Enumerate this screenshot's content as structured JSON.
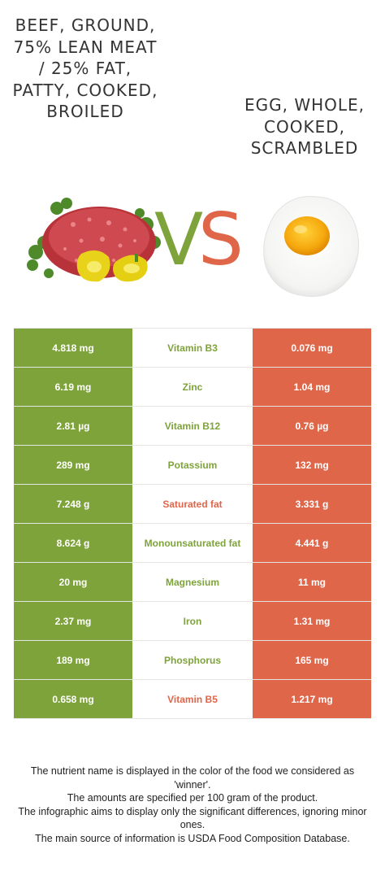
{
  "left_food": {
    "title": "Beef, ground, 75% lean meat / 25% fat, patty, cooked, broiled",
    "image": "ground-beef-with-peppers-image"
  },
  "right_food": {
    "title": "Egg, whole, cooked, scrambled",
    "image": "fried-egg-image"
  },
  "vs": {
    "v": "V",
    "s": "S"
  },
  "colors": {
    "left": "#7ea33a",
    "right": "#e0664a",
    "row_border": "#e5e5e5"
  },
  "rows": [
    {
      "left": "4.818 mg",
      "nutrient": "Vitamin B3",
      "right": "0.076 mg",
      "winner": "left"
    },
    {
      "left": "6.19 mg",
      "nutrient": "Zinc",
      "right": "1.04 mg",
      "winner": "left"
    },
    {
      "left": "2.81 µg",
      "nutrient": "Vitamin B12",
      "right": "0.76 µg",
      "winner": "left"
    },
    {
      "left": "289 mg",
      "nutrient": "Potassium",
      "right": "132 mg",
      "winner": "left"
    },
    {
      "left": "7.248 g",
      "nutrient": "Saturated fat",
      "right": "3.331 g",
      "winner": "right"
    },
    {
      "left": "8.624 g",
      "nutrient": "Monounsaturated fat",
      "right": "4.441 g",
      "winner": "left"
    },
    {
      "left": "20 mg",
      "nutrient": "Magnesium",
      "right": "11 mg",
      "winner": "left"
    },
    {
      "left": "2.37 mg",
      "nutrient": "Iron",
      "right": "1.31 mg",
      "winner": "left"
    },
    {
      "left": "189 mg",
      "nutrient": "Phosphorus",
      "right": "165 mg",
      "winner": "left"
    },
    {
      "left": "0.658 mg",
      "nutrient": "Vitamin B5",
      "right": "1.217 mg",
      "winner": "right"
    }
  ],
  "footer": [
    "The nutrient name is displayed in the color of the food we considered as 'winner'.",
    "The amounts are specified per 100 gram of the product.",
    "The infographic aims to display only the significant differences, ignoring minor ones.",
    "The main source of information is USDA Food Composition Database."
  ]
}
